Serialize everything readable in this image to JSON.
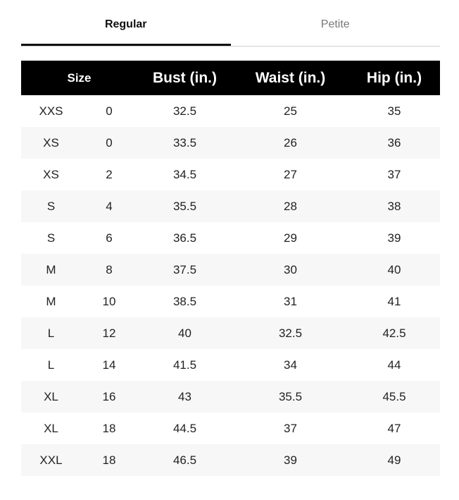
{
  "tabs": [
    {
      "label": "Regular",
      "active": true
    },
    {
      "label": "Petite",
      "active": false
    }
  ],
  "table": {
    "headers": [
      "Size",
      "Bust (in.)",
      "Waist (in.)",
      "Hip (in.)"
    ],
    "rows": [
      [
        "XXS",
        "0",
        "32.5",
        "25",
        "35"
      ],
      [
        "XS",
        "0",
        "33.5",
        "26",
        "36"
      ],
      [
        "XS",
        "2",
        "34.5",
        "27",
        "37"
      ],
      [
        "S",
        "4",
        "35.5",
        "28",
        "38"
      ],
      [
        "S",
        "6",
        "36.5",
        "29",
        "39"
      ],
      [
        "M",
        "8",
        "37.5",
        "30",
        "40"
      ],
      [
        "M",
        "10",
        "38.5",
        "31",
        "41"
      ],
      [
        "L",
        "12",
        "40",
        "32.5",
        "42.5"
      ],
      [
        "L",
        "14",
        "41.5",
        "34",
        "44"
      ],
      [
        "XL",
        "16",
        "43",
        "35.5",
        "45.5"
      ],
      [
        "XL",
        "18",
        "44.5",
        "37",
        "47"
      ],
      [
        "XXL",
        "18",
        "46.5",
        "39",
        "49"
      ]
    ]
  },
  "colors": {
    "header_bg": "#000000",
    "stripe": "#f7f7f7",
    "active_tab": "#111111",
    "inactive_tab": "#777777"
  }
}
